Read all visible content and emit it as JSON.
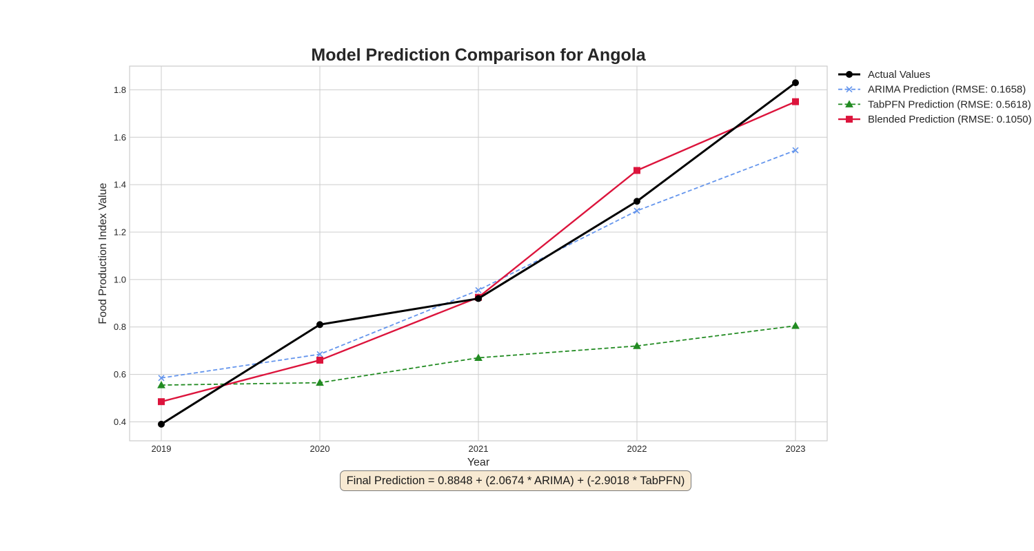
{
  "chart_data": {
    "type": "line",
    "title": "Model Prediction Comparison for Angola",
    "xlabel": "Year",
    "ylabel": "Food Production Index Value",
    "x": [
      2019,
      2020,
      2021,
      2022,
      2023
    ],
    "x_tick_labels": [
      "2019",
      "2020",
      "2021",
      "2022",
      "2023"
    ],
    "xlim": [
      2018.8,
      2023.2
    ],
    "ylim": [
      0.32,
      1.9
    ],
    "y_ticks": [
      0.4,
      0.6,
      0.8,
      1.0,
      1.2,
      1.4,
      1.6,
      1.8
    ],
    "y_tick_labels": [
      "0.4",
      "0.6",
      "0.8",
      "1.0",
      "1.2",
      "1.4",
      "1.6",
      "1.8"
    ],
    "grid": true,
    "legend_position": "outside-right",
    "series": [
      {
        "name": "Actual Values",
        "values": [
          0.39,
          0.81,
          0.92,
          1.33,
          1.83
        ],
        "color": "#000000",
        "line_style": "solid",
        "marker": "circle"
      },
      {
        "name": "ARIMA Prediction (RMSE: 0.1658)",
        "values": [
          0.585,
          0.685,
          0.955,
          1.29,
          1.545
        ],
        "color": "#6495ED",
        "line_style": "dashed",
        "marker": "x"
      },
      {
        "name": "TabPFN Prediction (RMSE: 0.5618)",
        "values": [
          0.555,
          0.565,
          0.67,
          0.72,
          0.805
        ],
        "color": "#228B22",
        "line_style": "dashed",
        "marker": "triangle"
      },
      {
        "name": "Blended Prediction (RMSE: 0.1050)",
        "values": [
          0.485,
          0.66,
          0.925,
          1.46,
          1.75
        ],
        "color": "#DC143C",
        "line_style": "solid",
        "marker": "square"
      }
    ],
    "annotation": "Final Prediction = 0.8848 + (2.0674 * ARIMA) + (-2.9018 * TabPFN)"
  }
}
